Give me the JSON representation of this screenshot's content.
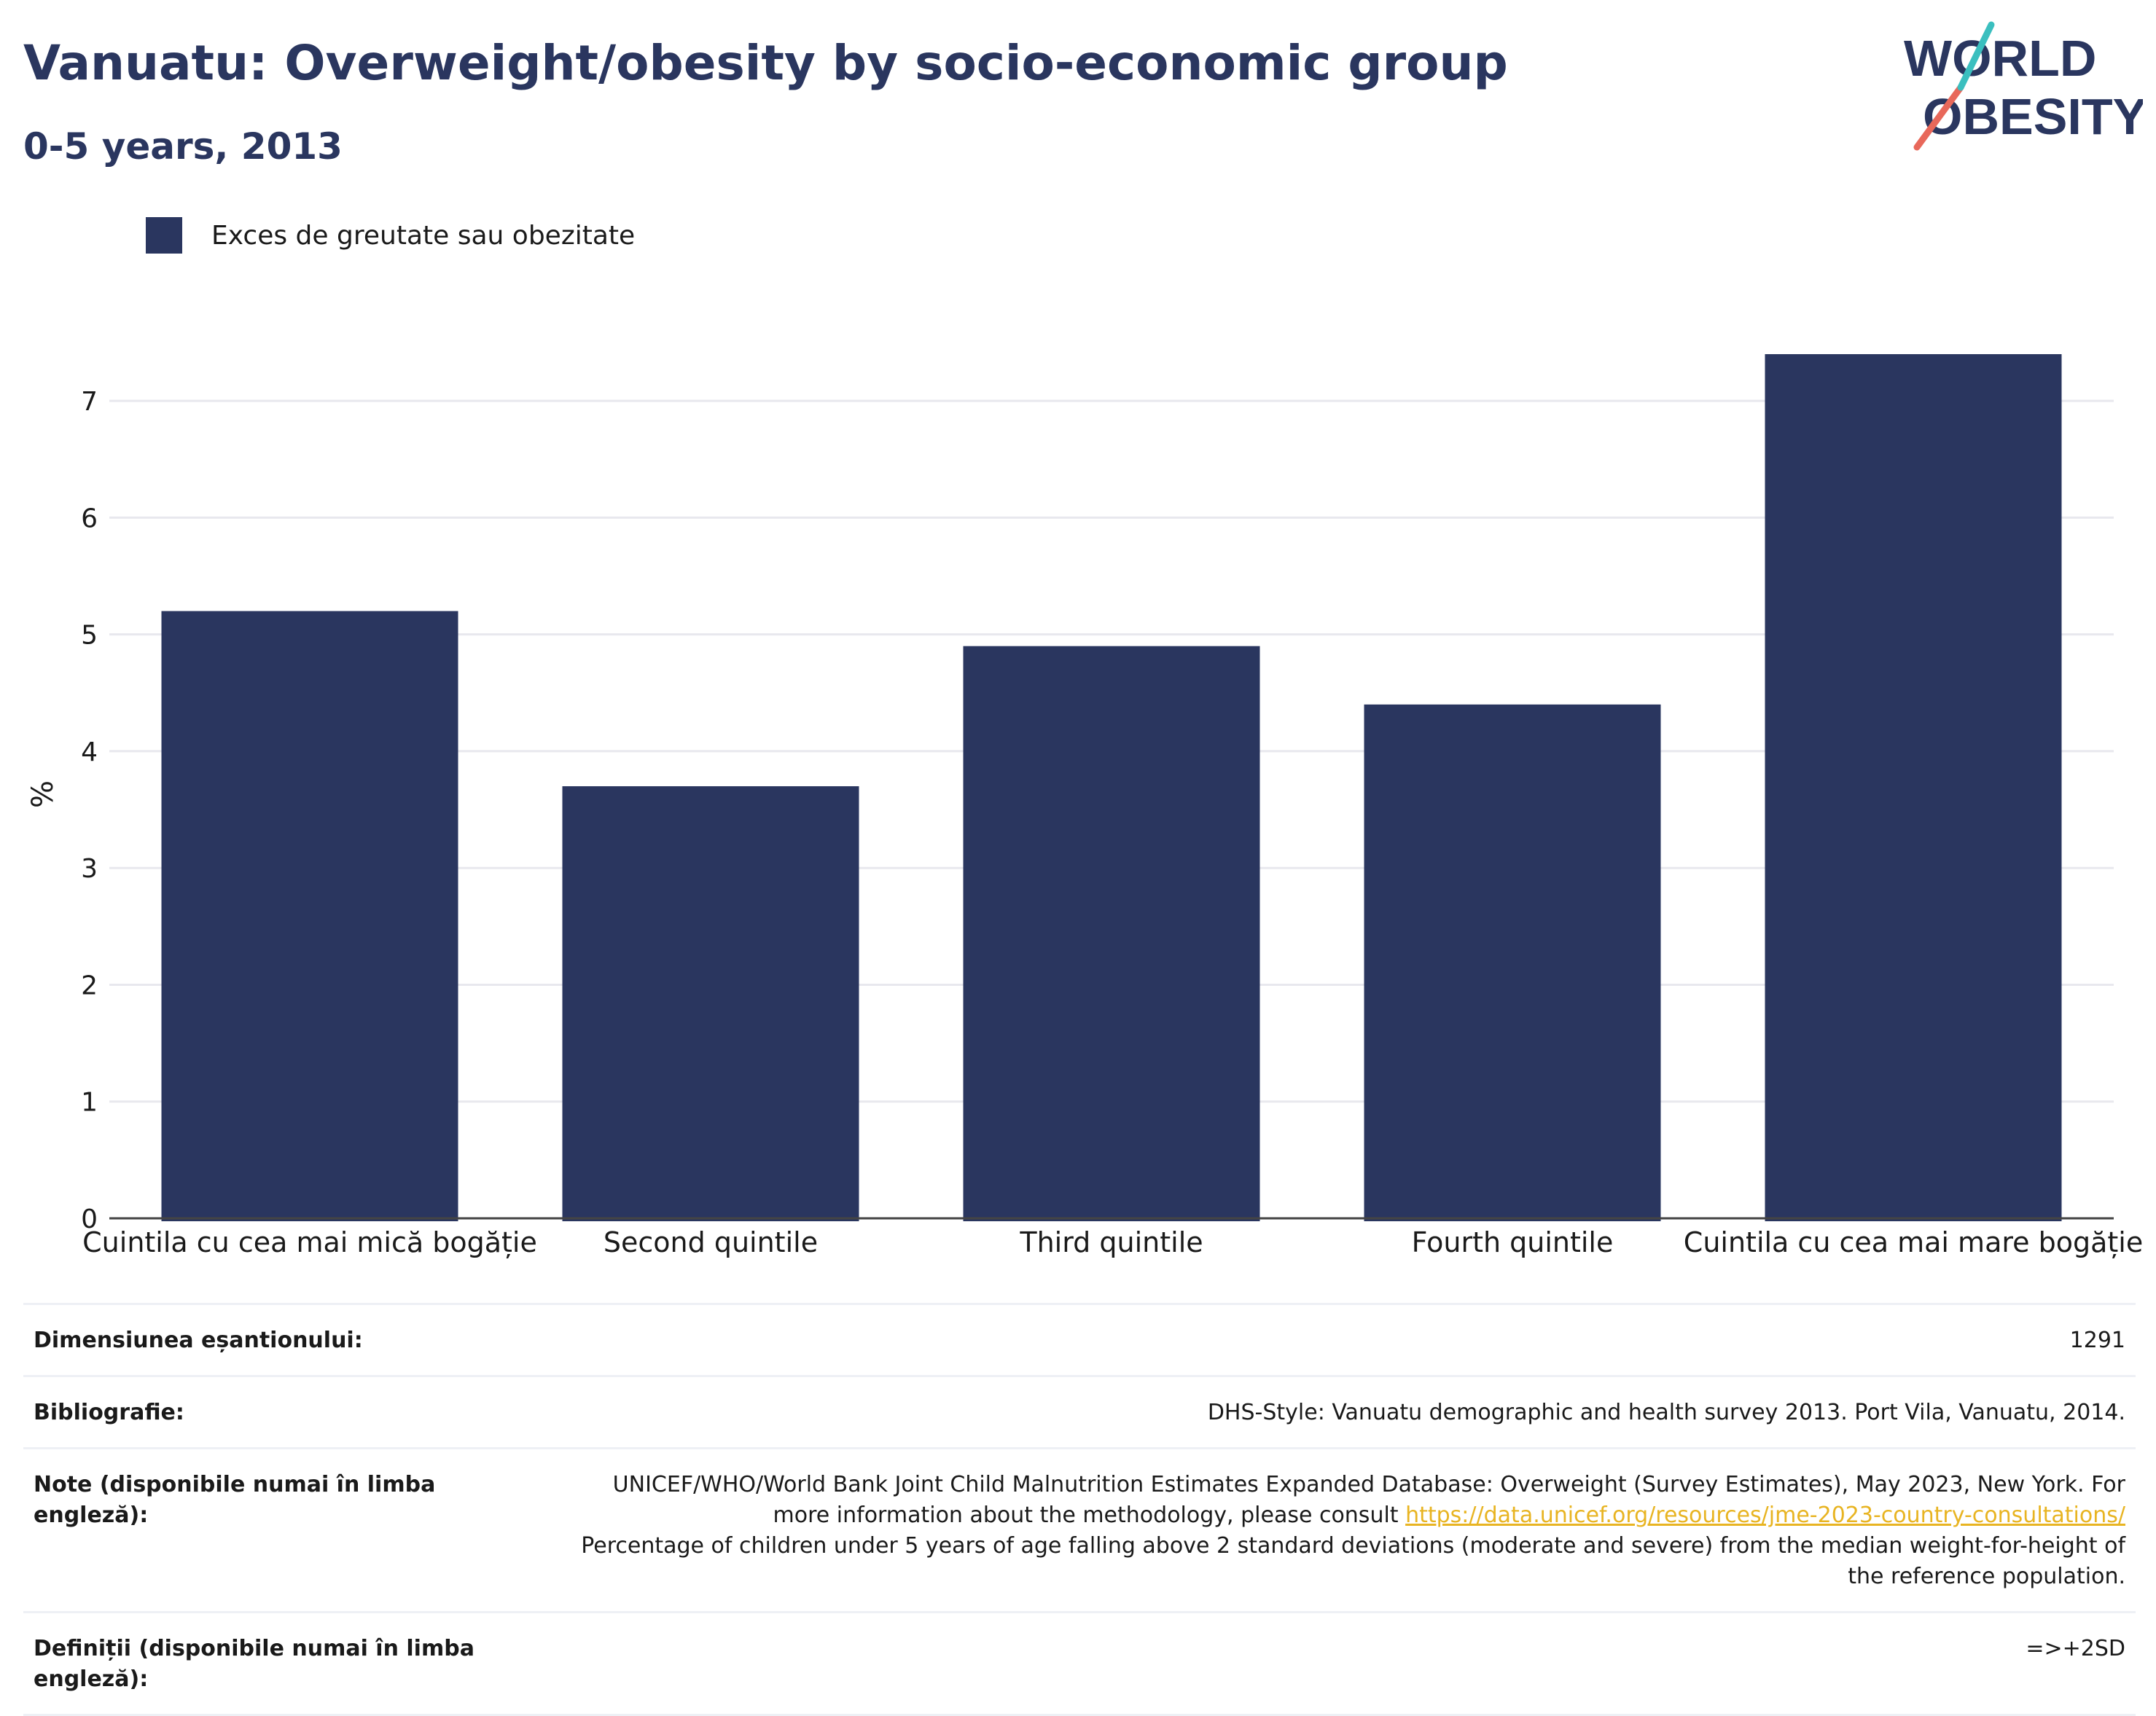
{
  "header": {
    "title": "Vanuatu: Overweight/obesity by socio-economic group",
    "subtitle": "0-5 years, 2013"
  },
  "logo": {
    "line1": "WORLD",
    "line2": "OBESITY"
  },
  "colors": {
    "bar": "#2a365f",
    "title": "#2a365f",
    "link": "#e8b422",
    "grid": "#e8e8ee"
  },
  "chart_data": {
    "type": "bar",
    "categories": [
      "Cuintila cu cea mai mică bogăție",
      "Second quintile",
      "Third quintile",
      "Fourth quintile",
      "Cuintila cu cea mai mare bogăție"
    ],
    "series": [
      {
        "name": "Exces de greutate sau obezitate",
        "values": [
          5.2,
          3.7,
          4.9,
          4.4,
          7.4
        ]
      }
    ],
    "ylabel": "%",
    "ylim": [
      0,
      7.5
    ],
    "yticks": [
      0,
      1,
      2,
      3,
      4,
      5,
      6,
      7
    ],
    "grid": true,
    "legend_position": "top-left"
  },
  "meta": {
    "sample_size_label": "Dimensiunea eșantionului:",
    "sample_size_value": "1291",
    "bibliography_label": "Bibliografie:",
    "bibliography_value": "DHS-Style: Vanuatu demographic and health survey 2013. Port Vila, Vanuatu, 2014.",
    "notes_label": "Note (disponibile numai în limba engleză):",
    "notes_text_1": "UNICEF/WHO/World Bank Joint Child Malnutrition Estimates Expanded Database: Overweight (Survey Estimates), May 2023, New York. For more information about the methodology, please consult ",
    "notes_link": "https://data.unicef.org/resources/jme-2023-country-consultations/",
    "notes_text_2": "Percentage of children under 5 years of age falling above 2 standard deviations (moderate and severe) from the median weight-for-height of the reference population.",
    "definitions_label": "Definiții (disponibile numai în limba engleză):",
    "definitions_value": "=>+2SD"
  }
}
